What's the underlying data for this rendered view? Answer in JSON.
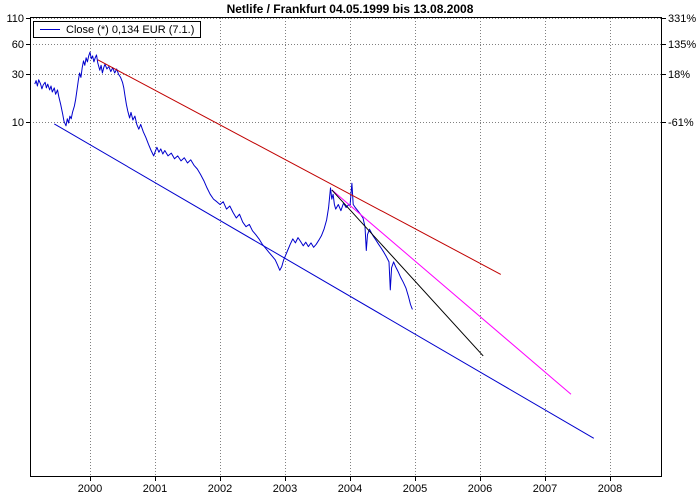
{
  "title": "Netlife / Frankfurt 04.05.1999 bis 13.08.2008",
  "legend": {
    "label": "Close (*) 0,134 EUR (7.1.)",
    "line_color": "#0000cd"
  },
  "colors": {
    "background": "#ffffff",
    "frame": "#000000",
    "grid": "#808080"
  },
  "chart_data": {
    "type": "line",
    "title": "Netlife / Frankfurt 04.05.1999 bis 13.08.2008",
    "y_scale": "log",
    "grid": true,
    "grid_color": "#808080",
    "x_axis": {
      "ticks": [
        2000,
        2001,
        2002,
        2003,
        2004,
        2005,
        2006,
        2007,
        2008
      ]
    },
    "y_axis": {
      "top_value": 110,
      "ticks": [
        110,
        60,
        30,
        10
      ],
      "right_percent_labels": [
        "331%",
        "135%",
        "18%",
        "-61%"
      ]
    },
    "series": [
      {
        "name": "close",
        "color": "#0000cd",
        "width": 1,
        "points": [
          [
            1999.15,
            24
          ],
          [
            1999.17,
            26
          ],
          [
            1999.19,
            23
          ],
          [
            1999.21,
            26.5
          ],
          [
            1999.24,
            24
          ],
          [
            1999.26,
            21.5
          ],
          [
            1999.28,
            23.5
          ],
          [
            1999.31,
            25
          ],
          [
            1999.33,
            22
          ],
          [
            1999.35,
            24
          ],
          [
            1999.38,
            21
          ],
          [
            1999.4,
            23
          ],
          [
            1999.42,
            20
          ],
          [
            1999.45,
            22
          ],
          [
            1999.47,
            19
          ],
          [
            1999.5,
            21
          ],
          [
            1999.52,
            18
          ],
          [
            1999.55,
            15
          ],
          [
            1999.58,
            12
          ],
          [
            1999.6,
            10.2
          ],
          [
            1999.63,
            9.2
          ],
          [
            1999.65,
            10.8
          ],
          [
            1999.67,
            9.8
          ],
          [
            1999.69,
            11.5
          ],
          [
            1999.71,
            10.8
          ],
          [
            1999.73,
            12.5
          ],
          [
            1999.76,
            14.5
          ],
          [
            1999.78,
            17
          ],
          [
            1999.8,
            21
          ],
          [
            1999.82,
            26
          ],
          [
            1999.84,
            31
          ],
          [
            1999.86,
            28
          ],
          [
            1999.88,
            35
          ],
          [
            1999.9,
            41
          ],
          [
            1999.92,
            37
          ],
          [
            1999.94,
            44
          ],
          [
            1999.96,
            40
          ],
          [
            1999.98,
            46
          ],
          [
            2000.0,
            50
          ],
          [
            2000.02,
            43
          ],
          [
            2000.04,
            46
          ],
          [
            2000.06,
            40
          ],
          [
            2000.08,
            44
          ],
          [
            2000.1,
            47
          ],
          [
            2000.12,
            39
          ],
          [
            2000.15,
            33
          ],
          [
            2000.17,
            37
          ],
          [
            2000.19,
            31
          ],
          [
            2000.21,
            35
          ],
          [
            2000.23,
            38
          ],
          [
            2000.26,
            34
          ],
          [
            2000.29,
            36
          ],
          [
            2000.32,
            32
          ],
          [
            2000.35,
            35
          ],
          [
            2000.38,
            31
          ],
          [
            2000.41,
            34
          ],
          [
            2000.44,
            30
          ],
          [
            2000.47,
            28
          ],
          [
            2000.5,
            25
          ],
          [
            2000.52,
            22
          ],
          [
            2000.54,
            18
          ],
          [
            2000.56,
            15
          ],
          [
            2000.58,
            13
          ],
          [
            2000.61,
            11
          ],
          [
            2000.63,
            12.5
          ],
          [
            2000.66,
            10.5
          ],
          [
            2000.69,
            11.5
          ],
          [
            2000.72,
            9.5
          ],
          [
            2000.75,
            8.5
          ],
          [
            2000.78,
            9.5
          ],
          [
            2000.82,
            8
          ],
          [
            2000.86,
            7
          ],
          [
            2000.9,
            6
          ],
          [
            2000.94,
            5.2
          ],
          [
            2000.98,
            4.6
          ],
          [
            2001.0,
            5.0
          ],
          [
            2001.03,
            5.6
          ],
          [
            2001.06,
            5.0
          ],
          [
            2001.09,
            5.4
          ],
          [
            2001.12,
            4.8
          ],
          [
            2001.15,
            5.2
          ],
          [
            2001.2,
            4.6
          ],
          [
            2001.25,
            4.9
          ],
          [
            2001.3,
            4.3
          ],
          [
            2001.35,
            4.6
          ],
          [
            2001.4,
            4.1
          ],
          [
            2001.45,
            4.4
          ],
          [
            2001.5,
            3.9
          ],
          [
            2001.55,
            4.2
          ],
          [
            2001.6,
            3.7
          ],
          [
            2001.65,
            3.4
          ],
          [
            2001.7,
            3.0
          ],
          [
            2001.75,
            2.6
          ],
          [
            2001.8,
            2.2
          ],
          [
            2001.85,
            1.9
          ],
          [
            2001.9,
            1.7
          ],
          [
            2001.95,
            1.6
          ],
          [
            2002.0,
            1.5
          ],
          [
            2002.05,
            1.6
          ],
          [
            2002.1,
            1.35
          ],
          [
            2002.15,
            1.45
          ],
          [
            2002.2,
            1.25
          ],
          [
            2002.25,
            1.1
          ],
          [
            2002.3,
            1.2
          ],
          [
            2002.35,
            1.0
          ],
          [
            2002.4,
            0.9
          ],
          [
            2002.45,
            0.95
          ],
          [
            2002.5,
            0.82
          ],
          [
            2002.55,
            0.75
          ],
          [
            2002.6,
            0.68
          ],
          [
            2002.65,
            0.6
          ],
          [
            2002.7,
            0.55
          ],
          [
            2002.75,
            0.5
          ],
          [
            2002.8,
            0.46
          ],
          [
            2002.85,
            0.42
          ],
          [
            2002.88,
            0.38
          ],
          [
            2002.92,
            0.33
          ],
          [
            2002.95,
            0.36
          ],
          [
            2002.98,
            0.42
          ],
          [
            2003.0,
            0.45
          ],
          [
            2003.04,
            0.52
          ],
          [
            2003.08,
            0.6
          ],
          [
            2003.12,
            0.68
          ],
          [
            2003.16,
            0.62
          ],
          [
            2003.2,
            0.7
          ],
          [
            2003.24,
            0.64
          ],
          [
            2003.28,
            0.58
          ],
          [
            2003.32,
            0.63
          ],
          [
            2003.36,
            0.57
          ],
          [
            2003.4,
            0.62
          ],
          [
            2003.44,
            0.56
          ],
          [
            2003.48,
            0.6
          ],
          [
            2003.52,
            0.66
          ],
          [
            2003.56,
            0.73
          ],
          [
            2003.6,
            0.85
          ],
          [
            2003.64,
            1.05
          ],
          [
            2003.67,
            1.4
          ],
          [
            2003.7,
            2.2
          ],
          [
            2003.72,
            1.7
          ],
          [
            2003.74,
            1.9
          ],
          [
            2003.76,
            1.5
          ],
          [
            2003.78,
            1.35
          ],
          [
            2003.82,
            1.5
          ],
          [
            2003.86,
            1.3
          ],
          [
            2003.9,
            1.55
          ],
          [
            2003.94,
            1.4
          ],
          [
            2003.98,
            1.5
          ],
          [
            2004.0,
            1.45
          ],
          [
            2004.03,
            2.45
          ],
          [
            2004.05,
            1.5
          ],
          [
            2004.08,
            1.4
          ],
          [
            2004.12,
            1.3
          ],
          [
            2004.16,
            1.2
          ],
          [
            2004.2,
            1.1
          ],
          [
            2004.23,
            0.9
          ],
          [
            2004.25,
            0.52
          ],
          [
            2004.27,
            0.75
          ],
          [
            2004.3,
            0.85
          ],
          [
            2004.33,
            0.78
          ],
          [
            2004.36,
            0.72
          ],
          [
            2004.4,
            0.66
          ],
          [
            2004.44,
            0.6
          ],
          [
            2004.48,
            0.55
          ],
          [
            2004.52,
            0.5
          ],
          [
            2004.56,
            0.45
          ],
          [
            2004.6,
            0.4
          ],
          [
            2004.62,
            0.21
          ],
          [
            2004.64,
            0.35
          ],
          [
            2004.67,
            0.4
          ],
          [
            2004.7,
            0.36
          ],
          [
            2004.74,
            0.32
          ],
          [
            2004.78,
            0.28
          ],
          [
            2004.82,
            0.25
          ],
          [
            2004.86,
            0.22
          ],
          [
            2004.9,
            0.18
          ],
          [
            2004.93,
            0.15
          ],
          [
            2004.96,
            0.134
          ]
        ]
      },
      {
        "name": "upper-trendline-red",
        "color": "#c00000",
        "width": 1,
        "points": [
          [
            2000.12,
            42
          ],
          [
            2006.32,
            0.3
          ]
        ]
      },
      {
        "name": "trendline-magenta",
        "color": "#ff00ff",
        "width": 1,
        "points": [
          [
            2003.72,
            2.1
          ],
          [
            2007.4,
            0.019
          ]
        ]
      },
      {
        "name": "trendline-black",
        "color": "#000000",
        "width": 1,
        "points": [
          [
            2003.72,
            2.1
          ],
          [
            2006.05,
            0.046
          ]
        ]
      },
      {
        "name": "lower-trendline-blue",
        "color": "#0000cd",
        "width": 1,
        "points": [
          [
            1999.45,
            9.6
          ],
          [
            2007.75,
            0.0069
          ]
        ]
      }
    ]
  }
}
